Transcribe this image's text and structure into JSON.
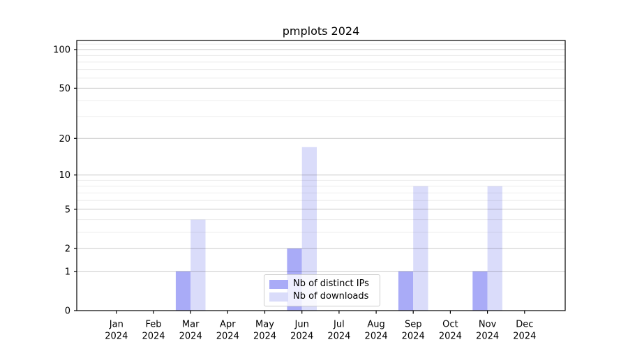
{
  "chart_data": {
    "type": "bar",
    "title": "pmplots 2024",
    "xlabel": "",
    "ylabel": "",
    "categories": [
      "Jan",
      "Feb",
      "Mar",
      "Apr",
      "May",
      "Jun",
      "Jul",
      "Aug",
      "Sep",
      "Oct",
      "Nov",
      "Dec"
    ],
    "category_year": "2024",
    "series": [
      {
        "name": "Nb of distinct IPs",
        "color": "#a9abf7",
        "values": [
          0,
          0,
          1,
          0,
          0,
          2,
          0,
          0,
          1,
          0,
          1,
          0
        ]
      },
      {
        "name": "Nb of downloads",
        "color": "#dadcfa",
        "values": [
          0,
          0,
          4,
          0,
          0,
          17,
          0,
          0,
          8,
          0,
          8,
          0
        ]
      }
    ],
    "yscale": "log1p",
    "ylim": [
      0,
      117
    ],
    "y_major_ticks": [
      0,
      1,
      2,
      5,
      10,
      20,
      50,
      100
    ],
    "y_minor_gridlines": [
      3,
      4,
      6,
      7,
      8,
      9,
      30,
      40,
      60,
      70,
      80,
      90,
      110
    ],
    "grid": true,
    "legend": {
      "position": "lower center"
    },
    "colors": {
      "major_grid": "rgba(0,0,0,0.21)",
      "minor_grid": "rgba(0,0,0,0.075)",
      "axis": "#000000"
    }
  }
}
